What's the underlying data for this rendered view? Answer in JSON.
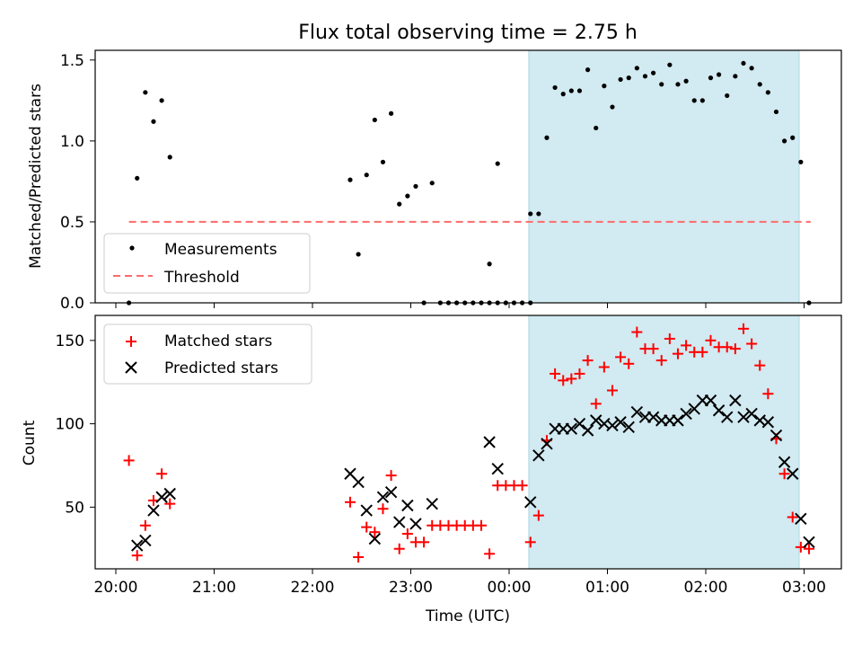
{
  "chart_data": [
    {
      "type": "scatter",
      "title": "Flux total observing time = 2.75 h",
      "xlabel": "",
      "ylabel": "Matched/Predicted stars",
      "ylim": [
        0,
        1.56
      ],
      "yticks": [
        "0.0",
        "0.5",
        "1.0",
        "1.5"
      ],
      "highlight_span": {
        "start": "00:12",
        "end": "02:57"
      },
      "legend": {
        "position": "bottom-left",
        "entries": [
          "Measurements",
          "Threshold"
        ]
      },
      "threshold": {
        "name": "Threshold",
        "value": 0.5,
        "x_start": "20:08",
        "x_end": "03:04",
        "color": "#ff6b6b"
      },
      "series": [
        {
          "name": "Measurements",
          "color": "#000000",
          "points": [
            [
              "20:08",
              0.0
            ],
            [
              "20:13",
              0.77
            ],
            [
              "20:18",
              1.3
            ],
            [
              "20:23",
              1.12
            ],
            [
              "20:28",
              1.25
            ],
            [
              "20:33",
              0.9
            ],
            [
              "22:23",
              0.76
            ],
            [
              "22:28",
              0.3
            ],
            [
              "22:33",
              0.79
            ],
            [
              "22:38",
              1.13
            ],
            [
              "22:43",
              0.87
            ],
            [
              "22:48",
              1.17
            ],
            [
              "22:53",
              0.61
            ],
            [
              "22:58",
              0.66
            ],
            [
              "23:03",
              0.72
            ],
            [
              "23:08",
              0.0
            ],
            [
              "23:13",
              0.74
            ],
            [
              "23:18",
              0.0
            ],
            [
              "23:23",
              0.0
            ],
            [
              "23:28",
              0.0
            ],
            [
              "23:33",
              0.0
            ],
            [
              "23:38",
              0.0
            ],
            [
              "23:43",
              0.0
            ],
            [
              "23:48",
              0.0
            ],
            [
              "23:53",
              0.0
            ],
            [
              "23:58",
              0.0
            ],
            [
              "00:03",
              0.0
            ],
            [
              "00:08",
              0.0
            ],
            [
              "00:13",
              0.0
            ],
            [
              "23:48",
              0.24
            ],
            [
              "23:53",
              0.86
            ],
            [
              "00:13",
              0.55
            ],
            [
              "00:18",
              0.55
            ],
            [
              "00:23",
              1.02
            ],
            [
              "00:28",
              1.33
            ],
            [
              "00:33",
              1.29
            ],
            [
              "00:38",
              1.31
            ],
            [
              "00:43",
              1.31
            ],
            [
              "00:48",
              1.44
            ],
            [
              "00:53",
              1.08
            ],
            [
              "00:58",
              1.34
            ],
            [
              "01:03",
              1.21
            ],
            [
              "01:08",
              1.38
            ],
            [
              "01:13",
              1.39
            ],
            [
              "01:18",
              1.45
            ],
            [
              "01:23",
              1.4
            ],
            [
              "01:28",
              1.42
            ],
            [
              "01:33",
              1.35
            ],
            [
              "01:38",
              1.47
            ],
            [
              "01:43",
              1.35
            ],
            [
              "01:48",
              1.37
            ],
            [
              "01:53",
              1.25
            ],
            [
              "01:58",
              1.25
            ],
            [
              "02:03",
              1.39
            ],
            [
              "02:08",
              1.41
            ],
            [
              "02:13",
              1.28
            ],
            [
              "02:18",
              1.4
            ],
            [
              "02:23",
              1.48
            ],
            [
              "02:28",
              1.45
            ],
            [
              "02:33",
              1.35
            ],
            [
              "02:38",
              1.3
            ],
            [
              "02:43",
              1.18
            ],
            [
              "02:48",
              1.0
            ],
            [
              "02:53",
              1.02
            ],
            [
              "02:58",
              0.87
            ],
            [
              "03:03",
              0.0
            ]
          ]
        }
      ]
    },
    {
      "type": "scatter",
      "title": "",
      "xlabel": "Time (UTC)",
      "ylabel": "Count",
      "ylim": [
        13,
        165
      ],
      "yticks": [
        "50",
        "100",
        "150"
      ],
      "xticks": [
        "20:00",
        "21:00",
        "22:00",
        "23:00",
        "00:00",
        "01:00",
        "02:00",
        "03:00"
      ],
      "highlight_span": {
        "start": "00:12",
        "end": "02:57"
      },
      "legend": {
        "position": "top-left",
        "entries": [
          "Matched stars",
          "Predicted stars"
        ]
      },
      "series": [
        {
          "name": "Matched stars",
          "color": "#ff0000",
          "marker": "+",
          "points": [
            [
              "20:08",
              78
            ],
            [
              "20:13",
              21
            ],
            [
              "20:18",
              39
            ],
            [
              "20:23",
              54
            ],
            [
              "20:28",
              70
            ],
            [
              "20:33",
              52
            ],
            [
              "22:23",
              53
            ],
            [
              "22:28",
              20
            ],
            [
              "22:33",
              38
            ],
            [
              "22:38",
              35
            ],
            [
              "22:43",
              49
            ],
            [
              "22:48",
              69
            ],
            [
              "22:53",
              25
            ],
            [
              "22:58",
              34
            ],
            [
              "23:03",
              29
            ],
            [
              "23:08",
              29
            ],
            [
              "23:13",
              39
            ],
            [
              "23:18",
              39
            ],
            [
              "23:23",
              39
            ],
            [
              "23:28",
              39
            ],
            [
              "23:33",
              39
            ],
            [
              "23:38",
              39
            ],
            [
              "23:43",
              39
            ],
            [
              "23:48",
              22
            ],
            [
              "23:53",
              63
            ],
            [
              "23:58",
              63
            ],
            [
              "00:03",
              63
            ],
            [
              "00:08",
              63
            ],
            [
              "00:13",
              29
            ],
            [
              "00:18",
              45
            ],
            [
              "00:23",
              90
            ],
            [
              "00:28",
              130
            ],
            [
              "00:33",
              126
            ],
            [
              "00:38",
              127
            ],
            [
              "00:43",
              130
            ],
            [
              "00:48",
              138
            ],
            [
              "00:53",
              112
            ],
            [
              "00:58",
              134
            ],
            [
              "01:03",
              120
            ],
            [
              "01:08",
              140
            ],
            [
              "01:13",
              136
            ],
            [
              "01:18",
              155
            ],
            [
              "01:23",
              145
            ],
            [
              "01:28",
              145
            ],
            [
              "01:33",
              138
            ],
            [
              "01:38",
              151
            ],
            [
              "01:43",
              142
            ],
            [
              "01:48",
              147
            ],
            [
              "01:53",
              143
            ],
            [
              "01:58",
              143
            ],
            [
              "02:03",
              150
            ],
            [
              "02:08",
              146
            ],
            [
              "02:13",
              146
            ],
            [
              "02:18",
              145
            ],
            [
              "02:23",
              157
            ],
            [
              "02:28",
              148
            ],
            [
              "02:33",
              135
            ],
            [
              "02:38",
              118
            ],
            [
              "02:43",
              91
            ],
            [
              "02:48",
              70
            ],
            [
              "02:53",
              44
            ],
            [
              "02:58",
              26
            ],
            [
              "03:03",
              25
            ]
          ]
        },
        {
          "name": "Predicted stars",
          "color": "#000000",
          "marker": "x",
          "points": [
            [
              "20:13",
              27
            ],
            [
              "20:18",
              30
            ],
            [
              "20:23",
              48
            ],
            [
              "20:28",
              56
            ],
            [
              "20:33",
              58
            ],
            [
              "22:23",
              70
            ],
            [
              "22:28",
              65
            ],
            [
              "22:33",
              48
            ],
            [
              "22:38",
              31
            ],
            [
              "22:43",
              56
            ],
            [
              "22:48",
              59
            ],
            [
              "22:53",
              41
            ],
            [
              "22:58",
              51
            ],
            [
              "23:03",
              40
            ],
            [
              "23:13",
              52
            ],
            [
              "23:48",
              89
            ],
            [
              "23:53",
              73
            ],
            [
              "00:13",
              53
            ],
            [
              "00:18",
              81
            ],
            [
              "00:23",
              88
            ],
            [
              "00:28",
              97
            ],
            [
              "00:33",
              97
            ],
            [
              "00:38",
              97
            ],
            [
              "00:43",
              100
            ],
            [
              "00:48",
              96
            ],
            [
              "00:53",
              102
            ],
            [
              "00:58",
              100
            ],
            [
              "01:03",
              99
            ],
            [
              "01:08",
              101
            ],
            [
              "01:13",
              98
            ],
            [
              "01:18",
              107
            ],
            [
              "01:23",
              104
            ],
            [
              "01:28",
              104
            ],
            [
              "01:33",
              102
            ],
            [
              "01:38",
              102
            ],
            [
              "01:43",
              102
            ],
            [
              "01:48",
              106
            ],
            [
              "01:53",
              109
            ],
            [
              "01:58",
              114
            ],
            [
              "02:03",
              114
            ],
            [
              "02:08",
              108
            ],
            [
              "02:13",
              104
            ],
            [
              "02:18",
              114
            ],
            [
              "02:23",
              104
            ],
            [
              "02:28",
              106
            ],
            [
              "02:33",
              102
            ],
            [
              "02:38",
              101
            ],
            [
              "02:43",
              93
            ],
            [
              "02:48",
              77
            ],
            [
              "02:53",
              70
            ],
            [
              "02:58",
              43
            ],
            [
              "03:03",
              29
            ]
          ]
        }
      ]
    }
  ],
  "colors": {
    "span": "#add8e6",
    "matched": "#ff0000",
    "predicted": "#000000",
    "threshold": "#ff6b6b"
  }
}
